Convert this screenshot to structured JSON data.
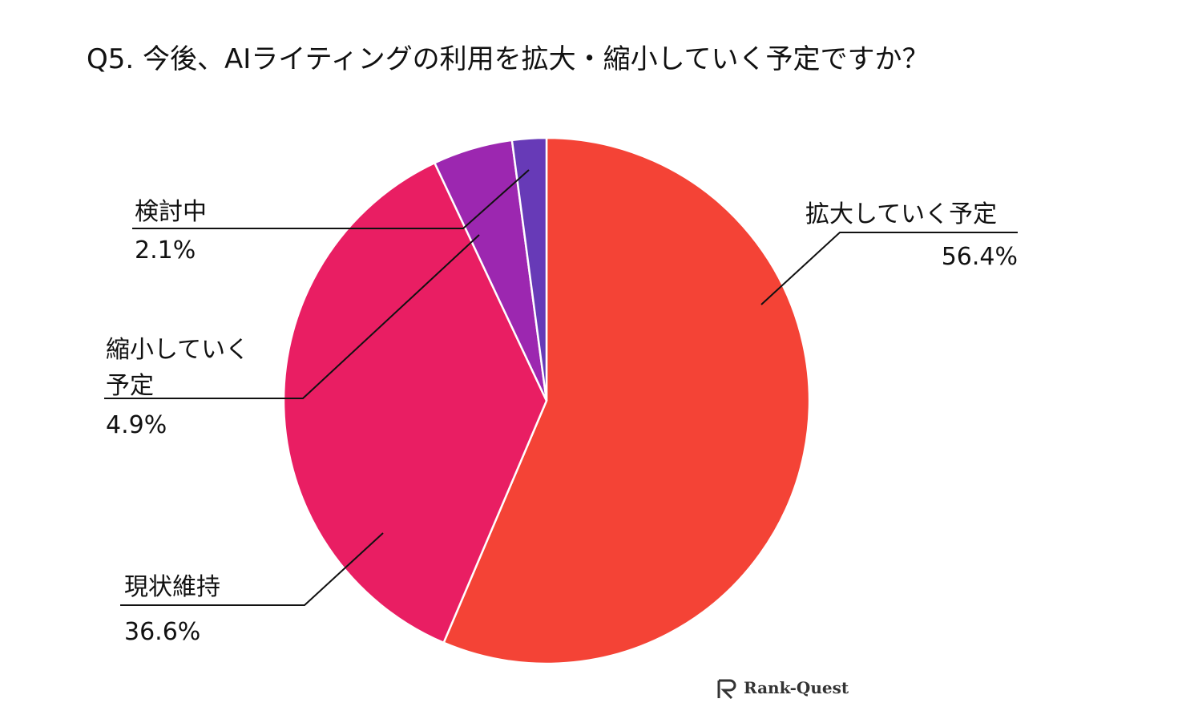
{
  "chart_data": {
    "type": "pie",
    "title": "Q5. 今後、AIライティングの利用を拡大・縮小していく予定ですか？",
    "categories": [
      "拡大していく予定",
      "現状維持",
      "縮小していく予定",
      "検討中"
    ],
    "values": [
      56.4,
      36.6,
      4.9,
      2.1
    ],
    "value_labels": [
      "56.4%",
      "36.6%",
      "4.9%",
      "2.1%"
    ],
    "colors": [
      "#f44336",
      "#e91e63",
      "#9c27b0",
      "#673ab7"
    ]
  },
  "watermark": "Rank-Quest"
}
